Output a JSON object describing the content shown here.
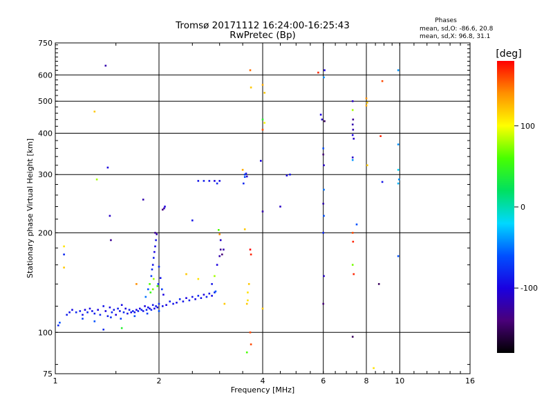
{
  "chart_data": {
    "type": "scatter",
    "title": "Tromsø 20171112 16:24:00-16:25:43",
    "subtitle": "RwPretec (Bp)",
    "phases": {
      "heading": "Phases",
      "line_o": "mean, sd,O: -86.6, 20.8",
      "line_x": "mean, sd,X:  96.8, 31.1"
    },
    "xlabel": "Frequency [MHz]",
    "ylabel": "Stationary phase Virtual Height [km]",
    "x_scale": "log",
    "y_scale": "log",
    "xlim": [
      1,
      16
    ],
    "ylim": [
      75,
      750
    ],
    "x_ticks": [
      1,
      2,
      4,
      6,
      8,
      10,
      16
    ],
    "y_ticks": [
      75,
      100,
      200,
      300,
      400,
      500,
      600,
      750
    ],
    "x_grid": [
      2,
      4,
      6,
      8,
      10
    ],
    "y_grid": [
      100,
      200,
      300,
      400,
      500,
      600
    ],
    "colorbar": {
      "label": "[deg]",
      "range": [
        -180,
        180
      ],
      "ticks": [
        100,
        0,
        -100
      ],
      "colormap": "rainbow",
      "stops": [
        "#000000",
        "#4a007a",
        "#1a00e0",
        "#0050ff",
        "#00d8ff",
        "#00e060",
        "#48ff00",
        "#ffff00",
        "#ff9000",
        "#ff0000"
      ]
    },
    "points": [
      [
        1.02,
        105,
        -80
      ],
      [
        1.03,
        107,
        -60
      ],
      [
        1.06,
        172,
        -80
      ],
      [
        1.06,
        182,
        110
      ],
      [
        1.06,
        157,
        120
      ],
      [
        1.08,
        113,
        -85
      ],
      [
        1.1,
        115,
        -90
      ],
      [
        1.12,
        117,
        -95
      ],
      [
        1.15,
        115,
        -80
      ],
      [
        1.18,
        116,
        -85
      ],
      [
        1.2,
        113,
        -90
      ],
      [
        1.22,
        117,
        -100
      ],
      [
        1.24,
        115,
        -80
      ],
      [
        1.26,
        118,
        -95
      ],
      [
        1.28,
        116,
        -90
      ],
      [
        1.3,
        114,
        -85
      ],
      [
        1.33,
        117,
        -100
      ],
      [
        1.35,
        113,
        -80
      ],
      [
        1.38,
        120,
        -90
      ],
      [
        1.4,
        116,
        -100
      ],
      [
        1.42,
        112,
        -85
      ],
      [
        1.44,
        119,
        -95
      ],
      [
        1.46,
        115,
        -80
      ],
      [
        1.48,
        117,
        -90
      ],
      [
        1.5,
        113,
        -100
      ],
      [
        1.52,
        118,
        -85
      ],
      [
        1.54,
        116,
        -90
      ],
      [
        1.56,
        121,
        -95
      ],
      [
        1.58,
        115,
        -80
      ],
      [
        1.6,
        118,
        -100
      ],
      [
        1.62,
        114,
        -90
      ],
      [
        1.64,
        117,
        -85
      ],
      [
        1.66,
        115,
        -95
      ],
      [
        1.68,
        116,
        -80
      ],
      [
        1.7,
        115,
        -90
      ],
      [
        1.72,
        117,
        -100
      ],
      [
        1.74,
        116,
        -85
      ],
      [
        1.76,
        118,
        -95
      ],
      [
        1.78,
        117,
        -80
      ],
      [
        1.8,
        116,
        -90
      ],
      [
        1.82,
        120,
        -100
      ],
      [
        1.84,
        117,
        -85
      ],
      [
        1.86,
        119,
        -90
      ],
      [
        1.88,
        118,
        -95
      ],
      [
        1.9,
        117,
        -80
      ],
      [
        1.92,
        121,
        -90
      ],
      [
        1.94,
        118,
        -100
      ],
      [
        1.96,
        120,
        -85
      ],
      [
        1.98,
        119,
        -95
      ],
      [
        2.0,
        122,
        -80
      ],
      [
        2.05,
        120,
        -90
      ],
      [
        2.1,
        121,
        -100
      ],
      [
        2.15,
        124,
        -85
      ],
      [
        2.2,
        122,
        -90
      ],
      [
        2.25,
        123,
        -95
      ],
      [
        2.3,
        126,
        -80
      ],
      [
        2.35,
        124,
        -90
      ],
      [
        2.4,
        127,
        -100
      ],
      [
        2.45,
        125,
        -85
      ],
      [
        2.5,
        128,
        -90
      ],
      [
        2.55,
        126,
        -95
      ],
      [
        2.6,
        129,
        -80
      ],
      [
        2.65,
        127,
        -90
      ],
      [
        2.7,
        130,
        -100
      ],
      [
        2.75,
        128,
        -85
      ],
      [
        2.8,
        131,
        -90
      ],
      [
        2.85,
        129,
        -95
      ],
      [
        2.9,
        132,
        -80
      ],
      [
        1.2,
        110,
        -70
      ],
      [
        1.3,
        108,
        -60
      ],
      [
        1.45,
        111,
        -75
      ],
      [
        1.55,
        110,
        -70
      ],
      [
        1.7,
        112,
        -65
      ],
      [
        1.85,
        114,
        -70
      ],
      [
        2.0,
        116,
        -60
      ],
      [
        1.83,
        128,
        -50
      ],
      [
        1.86,
        135,
        -60
      ],
      [
        1.88,
        140,
        60
      ],
      [
        1.9,
        148,
        -70
      ],
      [
        1.91,
        155,
        -80
      ],
      [
        1.92,
        160,
        -90
      ],
      [
        1.93,
        168,
        -85
      ],
      [
        1.94,
        175,
        -100
      ],
      [
        1.95,
        182,
        -95
      ],
      [
        1.96,
        190,
        -90
      ],
      [
        1.97,
        198,
        -120
      ],
      [
        1.95,
        200,
        -130
      ],
      [
        1.99,
        140,
        -80
      ],
      [
        2.02,
        146,
        -90
      ],
      [
        2.04,
        135,
        -70
      ],
      [
        2.06,
        130,
        -100
      ],
      [
        1.92,
        135,
        70
      ],
      [
        1.89,
        132,
        50
      ],
      [
        2.0,
        158,
        -80
      ],
      [
        1.93,
        145,
        80
      ],
      [
        2.05,
        235,
        -140
      ],
      [
        2.07,
        237,
        -120
      ],
      [
        2.08,
        240,
        -100
      ],
      [
        2.5,
        218,
        -90
      ],
      [
        2.6,
        287,
        -90
      ],
      [
        2.7,
        287,
        -85
      ],
      [
        2.8,
        287,
        -90
      ],
      [
        2.9,
        287,
        -100
      ],
      [
        3.0,
        287,
        -95
      ],
      [
        2.95,
        282,
        -80
      ],
      [
        3.1,
        122,
        120
      ],
      [
        2.9,
        148,
        80
      ],
      [
        2.85,
        140,
        -90
      ],
      [
        2.95,
        160,
        -100
      ],
      [
        3.0,
        170,
        -120
      ],
      [
        3.02,
        178,
        -130
      ],
      [
        3.05,
        172,
        -140
      ],
      [
        3.08,
        178,
        -120
      ],
      [
        3.02,
        190,
        -110
      ],
      [
        3.0,
        198,
        140
      ],
      [
        2.98,
        204,
        60
      ],
      [
        2.92,
        133,
        -60
      ],
      [
        2.6,
        145,
        110
      ],
      [
        2.4,
        150,
        120
      ],
      [
        1.72,
        140,
        140
      ],
      [
        1.98,
        138,
        60
      ],
      [
        1.56,
        103,
        40
      ],
      [
        1.38,
        102,
        -80
      ],
      [
        1.4,
        640,
        -120
      ],
      [
        1.42,
        315,
        -100
      ],
      [
        1.44,
        225,
        -110
      ],
      [
        1.45,
        190,
        -130
      ],
      [
        1.3,
        465,
        120
      ],
      [
        1.32,
        290,
        80
      ],
      [
        1.8,
        252,
        -120
      ],
      [
        3.5,
        310,
        130
      ],
      [
        3.55,
        300,
        -70
      ],
      [
        3.55,
        295,
        -60
      ],
      [
        3.52,
        282,
        -80
      ],
      [
        3.58,
        302,
        -90
      ],
      [
        3.6,
        296,
        -110
      ],
      [
        3.55,
        205,
        120
      ],
      [
        3.6,
        122,
        120
      ],
      [
        3.62,
        125,
        110
      ],
      [
        3.65,
        140,
        120
      ],
      [
        3.62,
        132,
        110
      ],
      [
        3.68,
        178,
        180
      ],
      [
        3.7,
        172,
        170
      ],
      [
        3.68,
        100,
        160
      ],
      [
        3.7,
        92,
        160
      ],
      [
        3.6,
        87,
        60
      ],
      [
        3.68,
        620,
        150
      ],
      [
        3.7,
        550,
        120
      ],
      [
        4.0,
        560,
        130
      ],
      [
        4.05,
        530,
        120
      ],
      [
        4.0,
        440,
        40
      ],
      [
        4.05,
        430,
        100
      ],
      [
        4.0,
        410,
        160
      ],
      [
        3.95,
        330,
        -100
      ],
      [
        4.0,
        232,
        -120
      ],
      [
        4.0,
        118,
        120
      ],
      [
        4.5,
        240,
        -110
      ],
      [
        4.7,
        298,
        -100
      ],
      [
        4.8,
        300,
        -90
      ],
      [
        5.8,
        610,
        170
      ],
      [
        5.9,
        455,
        -100
      ],
      [
        5.95,
        440,
        -110
      ],
      [
        6.05,
        620,
        -100
      ],
      [
        6.02,
        590,
        -40
      ],
      [
        6.05,
        435,
        -150
      ],
      [
        6.0,
        360,
        -60
      ],
      [
        6.0,
        345,
        -140
      ],
      [
        6.02,
        320,
        -110
      ],
      [
        6.02,
        270,
        -50
      ],
      [
        6.0,
        245,
        -120
      ],
      [
        6.02,
        225,
        -60
      ],
      [
        6.0,
        200,
        -80
      ],
      [
        6.02,
        148,
        -110
      ],
      [
        6.0,
        122,
        -140
      ],
      [
        7.3,
        500,
        -110
      ],
      [
        7.3,
        470,
        80
      ],
      [
        7.32,
        440,
        -130
      ],
      [
        7.3,
        425,
        -120
      ],
      [
        7.32,
        410,
        -120
      ],
      [
        7.3,
        395,
        -100
      ],
      [
        7.35,
        385,
        -110
      ],
      [
        7.3,
        338,
        -110
      ],
      [
        7.3,
        332,
        -40
      ],
      [
        7.5,
        212,
        -60
      ],
      [
        7.3,
        200,
        160
      ],
      [
        7.32,
        188,
        170
      ],
      [
        7.3,
        160,
        70
      ],
      [
        7.35,
        150,
        170
      ],
      [
        7.3,
        97,
        -150
      ],
      [
        8.0,
        510,
        140
      ],
      [
        8.05,
        495,
        120
      ],
      [
        8.0,
        485,
        130
      ],
      [
        8.05,
        320,
        120
      ],
      [
        8.4,
        78,
        110
      ],
      [
        8.8,
        392,
        170
      ],
      [
        8.9,
        575,
        160
      ],
      [
        8.9,
        285,
        -90
      ],
      [
        8.7,
        140,
        -150
      ],
      [
        9.9,
        620,
        -40
      ],
      [
        9.9,
        370,
        -40
      ],
      [
        9.9,
        310,
        -20
      ],
      [
        9.95,
        290,
        -40
      ],
      [
        9.9,
        282,
        -30
      ],
      [
        9.9,
        170,
        -60
      ]
    ]
  }
}
